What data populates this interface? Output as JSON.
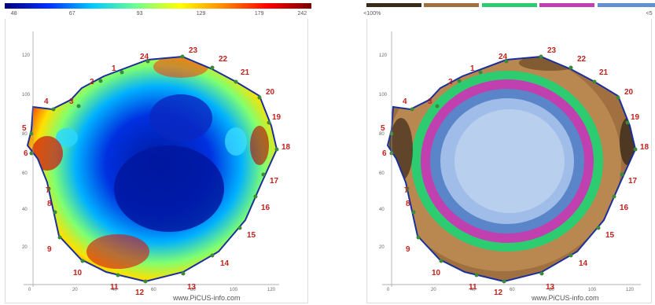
{
  "left_panel": {
    "colorbar_ticks": [
      "48",
      "67",
      "93",
      "129",
      "179",
      "242"
    ],
    "watermark": "www.PiCUS-info.com",
    "y_ticks": [
      "120",
      "100",
      "80",
      "60",
      "40",
      "20",
      "0"
    ],
    "x_ticks": [
      "0",
      "20",
      "40",
      "60",
      "80",
      "100",
      "120"
    ]
  },
  "right_panel": {
    "legend_colors": [
      "#3a2a1a",
      "#a07040",
      "#2ecc71",
      "#c040b0",
      "#6090d0"
    ],
    "pct_left": "<100%",
    "pct_right": "<5",
    "watermark": "www.PiCUS-info.com",
    "y_ticks": [
      "120",
      "100",
      "80",
      "60",
      "40",
      "20",
      "0"
    ],
    "x_ticks": [
      "0",
      "20",
      "40",
      "60",
      "80",
      "100",
      "120"
    ]
  },
  "nodes": [
    {
      "label": "1"
    },
    {
      "label": "2"
    },
    {
      "label": "3"
    },
    {
      "label": "4"
    },
    {
      "label": "5"
    },
    {
      "label": "6"
    },
    {
      "label": "7"
    },
    {
      "label": "8"
    },
    {
      "label": "9"
    },
    {
      "label": "10"
    },
    {
      "label": "11"
    },
    {
      "label": "12"
    },
    {
      "label": "13"
    },
    {
      "label": "14"
    },
    {
      "label": "15"
    },
    {
      "label": "16"
    },
    {
      "label": "17"
    },
    {
      "label": "18"
    },
    {
      "label": "19"
    },
    {
      "label": "20"
    },
    {
      "label": "21"
    },
    {
      "label": "22"
    },
    {
      "label": "23"
    },
    {
      "label": "24"
    }
  ],
  "colors": {
    "node_label": "#c0221e",
    "outline": "#1a2f9a",
    "node_dot": "#3a8a3a"
  }
}
